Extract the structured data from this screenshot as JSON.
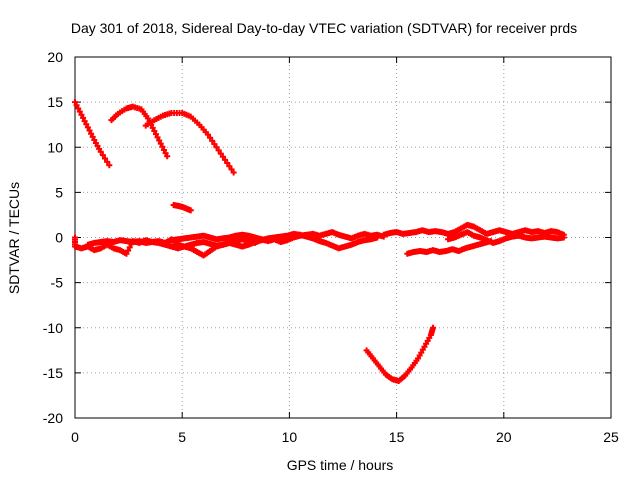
{
  "chart_data": {
    "type": "scatter",
    "title": "Day 301 of 2018, Sidereal Day-to-day VTEC variation (SDTVAR) for receiver prds",
    "xlabel": "GPS time / hours",
    "ylabel": "SDTVAR / TECUs",
    "xlim": [
      0,
      25
    ],
    "ylim": [
      -20,
      20
    ],
    "xticks": [
      0,
      5,
      10,
      15,
      20,
      25
    ],
    "yticks": [
      -20,
      -15,
      -10,
      -5,
      0,
      5,
      10,
      15,
      20
    ],
    "grid": true,
    "grid_style": "dotted",
    "marker": "plus",
    "series_color": "#ff0000",
    "series": [
      {
        "points": [
          [
            0.0,
            15.0
          ],
          [
            0.3,
            13.6
          ],
          [
            0.6,
            12.2
          ],
          [
            0.9,
            10.8
          ],
          [
            1.2,
            9.5
          ],
          [
            1.6,
            8.0
          ]
        ]
      },
      {
        "points": [
          [
            1.7,
            13.0
          ],
          [
            2.0,
            13.7
          ],
          [
            2.4,
            14.3
          ],
          [
            2.7,
            14.5
          ],
          [
            3.1,
            14.2
          ],
          [
            3.4,
            13.2
          ],
          [
            3.7,
            11.8
          ],
          [
            4.0,
            10.4
          ],
          [
            4.3,
            9.0
          ]
        ]
      },
      {
        "points": [
          [
            3.3,
            12.4
          ],
          [
            3.7,
            13.0
          ],
          [
            4.1,
            13.5
          ],
          [
            4.5,
            13.8
          ],
          [
            5.0,
            13.8
          ],
          [
            5.4,
            13.4
          ],
          [
            5.8,
            12.5
          ],
          [
            6.2,
            11.4
          ],
          [
            6.6,
            10.0
          ],
          [
            7.0,
            8.6
          ],
          [
            7.4,
            7.2
          ]
        ]
      },
      {
        "points": [
          [
            4.6,
            3.6
          ],
          [
            4.8,
            3.5
          ],
          [
            5.0,
            3.4
          ],
          [
            5.2,
            3.2
          ],
          [
            5.4,
            3.0
          ]
        ]
      },
      {
        "points": [
          [
            0.0,
            0.0
          ],
          [
            0.0,
            -1.0
          ],
          [
            0.3,
            -1.2
          ],
          [
            0.6,
            -1.0
          ],
          [
            0.9,
            -1.4
          ],
          [
            1.2,
            -1.2
          ],
          [
            1.5,
            -0.8
          ],
          [
            1.8,
            -1.2
          ],
          [
            2.1,
            -1.4
          ],
          [
            2.4,
            -1.8
          ],
          [
            2.7,
            -0.4
          ],
          [
            3.0,
            -0.6
          ],
          [
            3.3,
            -0.3
          ],
          [
            3.6,
            -0.5
          ],
          [
            3.9,
            -0.4
          ],
          [
            4.2,
            -0.6
          ],
          [
            4.5,
            -0.2
          ],
          [
            4.8,
            -0.8
          ],
          [
            5.1,
            -1.0
          ],
          [
            5.4,
            -1.2
          ],
          [
            5.7,
            -1.6
          ],
          [
            6.0,
            -2.0
          ],
          [
            6.3,
            -1.5
          ],
          [
            6.6,
            -1.0
          ],
          [
            6.9,
            -0.8
          ],
          [
            7.2,
            -0.6
          ],
          [
            7.5,
            -0.4
          ],
          [
            7.8,
            -0.2
          ],
          [
            8.1,
            -0.4
          ],
          [
            8.4,
            -0.6
          ],
          [
            8.7,
            -0.2
          ],
          [
            9.0,
            -0.4
          ],
          [
            9.3,
            -0.2
          ],
          [
            9.6,
            -0.5
          ],
          [
            9.9,
            -0.3
          ],
          [
            10.2,
            0.0
          ],
          [
            10.5,
            0.2
          ],
          [
            10.8,
            0.3
          ],
          [
            11.1,
            0.4
          ],
          [
            11.4,
            0.2
          ],
          [
            11.7,
            0.4
          ],
          [
            12.0,
            0.6
          ],
          [
            12.3,
            0.3
          ],
          [
            12.6,
            0.1
          ],
          [
            12.9,
            -0.1
          ],
          [
            13.2,
            0.2
          ],
          [
            13.5,
            0.4
          ],
          [
            13.8,
            0.2
          ],
          [
            14.1,
            0.3
          ],
          [
            14.4,
            0.1
          ]
        ]
      },
      {
        "points": [
          [
            0.6,
            -0.8
          ],
          [
            0.9,
            -0.6
          ],
          [
            1.2,
            -0.5
          ],
          [
            1.5,
            -0.4
          ],
          [
            1.8,
            -0.5
          ],
          [
            2.1,
            -0.3
          ],
          [
            2.4,
            -0.4
          ],
          [
            2.7,
            -0.5
          ],
          [
            3.0,
            -0.4
          ],
          [
            3.3,
            -0.6
          ],
          [
            3.6,
            -0.5
          ],
          [
            3.9,
            -0.6
          ],
          [
            4.2,
            -0.8
          ],
          [
            4.5,
            -1.0
          ],
          [
            4.8,
            -1.2
          ],
          [
            5.1,
            -1.0
          ],
          [
            5.4,
            -0.8
          ],
          [
            5.7,
            -0.6
          ],
          [
            6.0,
            -0.5
          ],
          [
            6.3,
            -0.7
          ],
          [
            6.6,
            -0.9
          ],
          [
            6.9,
            -0.8
          ],
          [
            7.2,
            -0.6
          ],
          [
            7.5,
            -0.8
          ],
          [
            7.8,
            -1.0
          ],
          [
            8.1,
            -0.8
          ],
          [
            8.4,
            -0.5
          ],
          [
            8.7,
            -0.3
          ],
          [
            9.0,
            -0.1
          ],
          [
            9.3,
            0.0
          ],
          [
            9.6,
            0.1
          ],
          [
            9.9,
            0.2
          ],
          [
            10.2,
            0.4
          ],
          [
            10.5,
            0.3
          ],
          [
            10.8,
            0.1
          ],
          [
            11.1,
            -0.1
          ],
          [
            11.4,
            -0.4
          ],
          [
            11.7,
            -0.6
          ],
          [
            12.0,
            -0.9
          ],
          [
            12.3,
            -1.2
          ],
          [
            12.6,
            -1.0
          ],
          [
            12.9,
            -0.8
          ],
          [
            13.2,
            -0.5
          ],
          [
            13.5,
            -0.3
          ],
          [
            13.8,
            -0.2
          ],
          [
            14.1,
            0.0
          ]
        ]
      },
      {
        "points": [
          [
            4.5,
            -0.3
          ],
          [
            4.8,
            -0.2
          ],
          [
            5.1,
            -0.1
          ],
          [
            5.4,
            0.0
          ],
          [
            5.7,
            0.1
          ],
          [
            6.0,
            0.2
          ],
          [
            6.3,
            0.0
          ],
          [
            6.6,
            -0.2
          ],
          [
            6.9,
            -0.1
          ],
          [
            7.2,
            0.0
          ],
          [
            7.5,
            0.2
          ],
          [
            7.8,
            0.3
          ],
          [
            8.1,
            0.2
          ],
          [
            8.4,
            0.0
          ],
          [
            8.7,
            -0.2
          ]
        ]
      },
      {
        "points": [
          [
            14.4,
            0.3
          ],
          [
            14.7,
            0.5
          ],
          [
            15.0,
            0.6
          ],
          [
            15.3,
            0.4
          ],
          [
            15.6,
            0.5
          ],
          [
            15.9,
            0.6
          ],
          [
            16.2,
            0.8
          ],
          [
            16.5,
            0.6
          ],
          [
            16.8,
            0.7
          ],
          [
            17.1,
            0.6
          ],
          [
            17.4,
            0.4
          ],
          [
            17.7,
            0.6
          ],
          [
            18.0,
            1.0
          ],
          [
            18.3,
            1.4
          ],
          [
            18.6,
            1.2
          ],
          [
            18.9,
            0.8
          ],
          [
            19.2,
            0.4
          ],
          [
            19.5,
            0.6
          ],
          [
            19.8,
            0.8
          ],
          [
            20.1,
            0.6
          ],
          [
            20.4,
            0.4
          ],
          [
            20.7,
            0.6
          ],
          [
            21.0,
            0.8
          ],
          [
            21.3,
            0.6
          ],
          [
            21.6,
            0.7
          ],
          [
            21.9,
            0.5
          ],
          [
            22.2,
            0.7
          ],
          [
            22.5,
            0.6
          ],
          [
            22.8,
            0.3
          ]
        ]
      },
      {
        "points": [
          [
            17.4,
            -0.2
          ],
          [
            17.7,
            0.0
          ],
          [
            18.0,
            0.3
          ],
          [
            18.3,
            0.6
          ],
          [
            18.6,
            0.2
          ],
          [
            18.9,
            0.0
          ],
          [
            19.2,
            -0.3
          ],
          [
            19.5,
            -0.6
          ],
          [
            19.8,
            -0.4
          ],
          [
            20.1,
            -0.1
          ],
          [
            20.4,
            0.1
          ],
          [
            20.7,
            0.2
          ],
          [
            21.0,
            0.0
          ],
          [
            21.3,
            -0.1
          ],
          [
            21.6,
            0.0
          ],
          [
            21.9,
            0.1
          ],
          [
            22.2,
            0.0
          ],
          [
            22.5,
            -0.1
          ],
          [
            22.8,
            0.0
          ]
        ]
      },
      {
        "points": [
          [
            15.5,
            -1.8
          ],
          [
            15.8,
            -1.6
          ],
          [
            16.1,
            -1.5
          ],
          [
            16.4,
            -1.6
          ],
          [
            16.7,
            -1.4
          ],
          [
            17.0,
            -1.6
          ],
          [
            17.3,
            -1.5
          ],
          [
            17.6,
            -1.3
          ],
          [
            17.9,
            -1.5
          ],
          [
            18.2,
            -1.2
          ],
          [
            18.5,
            -1.0
          ],
          [
            18.8,
            -0.8
          ],
          [
            19.1,
            -0.6
          ],
          [
            19.4,
            -0.4
          ]
        ]
      },
      {
        "points": [
          [
            13.6,
            -12.5
          ],
          [
            13.9,
            -13.4
          ],
          [
            14.2,
            -14.3
          ],
          [
            14.5,
            -15.2
          ],
          [
            14.8,
            -15.7
          ],
          [
            15.1,
            -15.9
          ],
          [
            15.4,
            -15.3
          ],
          [
            15.7,
            -14.4
          ],
          [
            16.0,
            -13.4
          ],
          [
            16.3,
            -12.1
          ],
          [
            16.6,
            -10.8
          ],
          [
            16.7,
            -10.0
          ]
        ]
      }
    ]
  }
}
